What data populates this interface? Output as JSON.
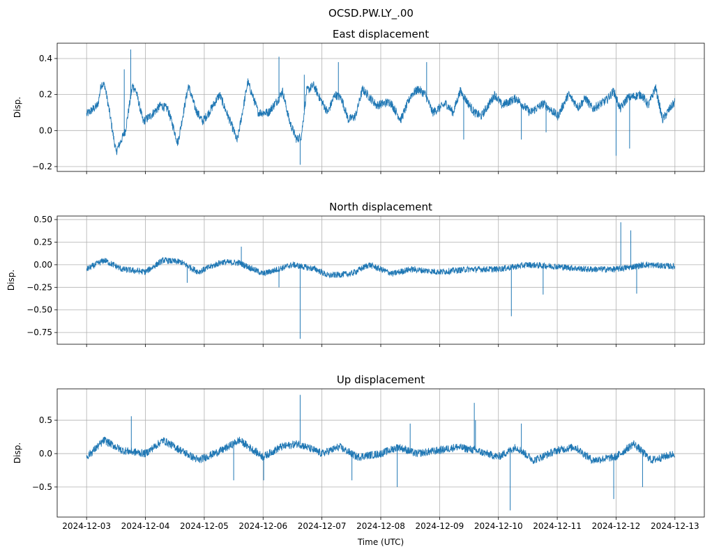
{
  "chart_data": {
    "type": "line",
    "suptitle": "OCSD.PW.LY_.00",
    "xlabel": "Time (UTC)",
    "x_unit": "days since 2024-12-03 00:00 UTC",
    "xlim": [
      -0.5,
      10.5
    ],
    "xticks": [
      0,
      1,
      2,
      3,
      4,
      5,
      6,
      7,
      8,
      9,
      10
    ],
    "xtick_labels": [
      "2024-12-03",
      "2024-12-04",
      "2024-12-05",
      "2024-12-06",
      "2024-12-07",
      "2024-12-08",
      "2024-12-09",
      "2024-12-10",
      "2024-12-11",
      "2024-12-12",
      "2024-12-13"
    ],
    "color": "#1f77b4",
    "grid": true,
    "panels": [
      {
        "title": "East displacement",
        "ylabel": "Disp.",
        "ylim": [
          -0.227,
          0.485
        ],
        "yticks": [
          -0.2,
          0.0,
          0.2,
          0.4
        ],
        "ytick_labels": [
          "−0.2",
          "0.0",
          "0.2",
          "0.4"
        ],
        "noise": 0.025,
        "x": [
          0,
          0.19,
          0.25,
          0.31,
          0.39,
          0.5,
          0.66,
          0.78,
          0.84,
          0.96,
          1.08,
          1.26,
          1.38,
          1.49,
          1.55,
          1.73,
          1.85,
          1.97,
          2.08,
          2.26,
          2.5,
          2.56,
          2.74,
          2.92,
          3.09,
          3.27,
          3.33,
          3.45,
          3.57,
          3.65,
          3.74,
          3.86,
          3.98,
          4.1,
          4.22,
          4.33,
          4.45,
          4.57,
          4.69,
          4.93,
          5.16,
          5.34,
          5.52,
          5.64,
          5.76,
          5.88,
          6.11,
          6.23,
          6.35,
          6.59,
          6.71,
          6.94,
          7.06,
          7.3,
          7.54,
          7.77,
          8.01,
          8.19,
          8.36,
          8.48,
          8.6,
          8.84,
          8.96,
          9.07,
          9.19,
          9.43,
          9.55,
          9.67,
          9.79,
          9.91,
          10
        ],
        "y": [
          0.09,
          0.14,
          0.26,
          0.25,
          0.1,
          -0.12,
          0.0,
          0.25,
          0.22,
          0.05,
          0.08,
          0.14,
          0.12,
          0.0,
          -0.07,
          0.25,
          0.12,
          0.05,
          0.1,
          0.2,
          0.0,
          -0.06,
          0.27,
          0.1,
          0.1,
          0.18,
          0.22,
          0.05,
          -0.05,
          -0.03,
          0.22,
          0.25,
          0.17,
          0.1,
          0.2,
          0.18,
          0.06,
          0.08,
          0.23,
          0.14,
          0.16,
          0.06,
          0.2,
          0.23,
          0.2,
          0.1,
          0.15,
          0.1,
          0.22,
          0.1,
          0.08,
          0.2,
          0.14,
          0.18,
          0.1,
          0.15,
          0.08,
          0.2,
          0.13,
          0.18,
          0.12,
          0.17,
          0.22,
          0.12,
          0.18,
          0.2,
          0.14,
          0.24,
          0.06,
          0.12,
          0.16
        ],
        "spikes": [
          [
            0.75,
            0.45
          ],
          [
            0.64,
            0.34
          ],
          [
            3.27,
            0.41
          ],
          [
            3.7,
            0.31
          ],
          [
            3.63,
            -0.19
          ],
          [
            4.28,
            0.38
          ],
          [
            5.78,
            0.38
          ],
          [
            9.0,
            -0.14
          ],
          [
            9.23,
            -0.1
          ],
          [
            7.39,
            -0.05
          ],
          [
            6.41,
            -0.05
          ],
          [
            7.81,
            -0.01
          ]
        ]
      },
      {
        "title": "North displacement",
        "ylabel": "Disp.",
        "ylim": [
          -0.88,
          0.539
        ],
        "yticks": [
          -0.75,
          -0.5,
          -0.25,
          0.0,
          0.25,
          0.5
        ],
        "ytick_labels": [
          "−0.75",
          "−0.50",
          "−0.25",
          "0.00",
          "0.25",
          "0.50"
        ],
        "noise": 0.035,
        "x": [
          0,
          0.3,
          0.6,
          1.0,
          1.3,
          1.6,
          1.9,
          2.3,
          2.6,
          3.0,
          3.5,
          3.9,
          4.1,
          4.5,
          4.8,
          5.2,
          5.5,
          6.0,
          6.5,
          7.0,
          7.5,
          8.0,
          8.5,
          9.0,
          9.5,
          10
        ],
        "y": [
          -0.05,
          0.05,
          -0.05,
          -0.08,
          0.05,
          0.03,
          -0.08,
          0.03,
          0.02,
          -0.1,
          0.0,
          -0.05,
          -0.12,
          -0.1,
          0.0,
          -0.1,
          -0.05,
          -0.08,
          -0.05,
          -0.05,
          0.0,
          -0.02,
          -0.05,
          -0.05,
          0.0,
          -0.02
        ],
        "spikes": [
          [
            3.63,
            -0.82
          ],
          [
            3.27,
            -0.25
          ],
          [
            9.08,
            0.47
          ],
          [
            9.25,
            0.38
          ],
          [
            9.35,
            -0.32
          ],
          [
            7.22,
            -0.57
          ],
          [
            7.76,
            -0.33
          ],
          [
            2.63,
            0.2
          ],
          [
            1.71,
            -0.2
          ]
        ]
      },
      {
        "title": "Up displacement",
        "ylabel": "Disp.",
        "xlabel_shown": true,
        "ylim": [
          -0.95,
          0.97
        ],
        "yticks": [
          -0.5,
          0.0,
          0.5
        ],
        "ytick_labels": [
          "−0.5",
          "0.0",
          "0.5"
        ],
        "noise": 0.06,
        "x": [
          0,
          0.3,
          0.6,
          1.0,
          1.3,
          1.6,
          1.9,
          2.3,
          2.6,
          3.0,
          3.3,
          3.6,
          4.0,
          4.3,
          4.6,
          5.0,
          5.3,
          5.6,
          6.0,
          6.3,
          6.6,
          7.0,
          7.3,
          7.6,
          8.0,
          8.3,
          8.6,
          9.0,
          9.3,
          9.6,
          10
        ],
        "y": [
          -0.05,
          0.2,
          0.05,
          0.0,
          0.2,
          0.05,
          -0.1,
          0.05,
          0.2,
          -0.05,
          0.1,
          0.15,
          0.0,
          0.1,
          -0.05,
          0.0,
          0.1,
          0.0,
          0.05,
          0.1,
          0.05,
          -0.05,
          0.1,
          -0.1,
          0.05,
          0.1,
          -0.1,
          -0.05,
          0.15,
          -0.1,
          0.0
        ],
        "spikes": [
          [
            0.76,
            0.56
          ],
          [
            3.63,
            0.88
          ],
          [
            7.2,
            -0.85
          ],
          [
            6.59,
            0.76
          ],
          [
            6.61,
            0.5
          ],
          [
            2.5,
            -0.4
          ],
          [
            3.01,
            -0.4
          ],
          [
            4.51,
            -0.4
          ],
          [
            5.28,
            -0.5
          ],
          [
            5.5,
            0.45
          ],
          [
            8.96,
            -0.68
          ],
          [
            9.45,
            -0.5
          ],
          [
            7.39,
            0.45
          ]
        ]
      }
    ]
  }
}
